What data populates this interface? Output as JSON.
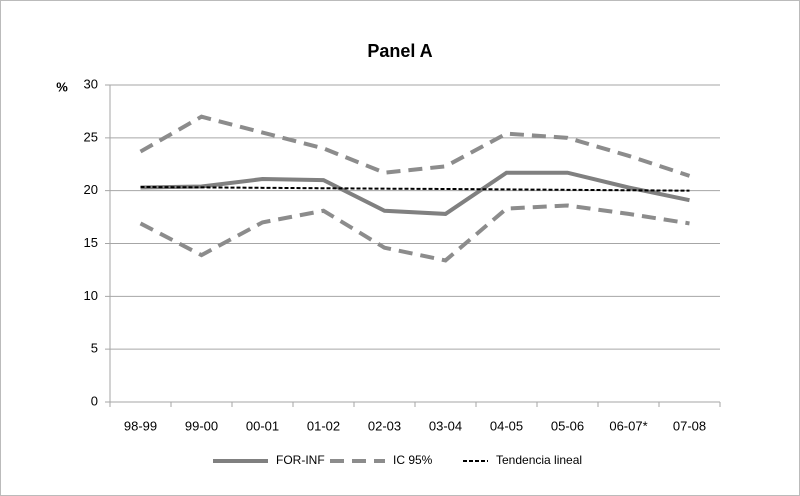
{
  "chart_data": {
    "type": "line",
    "title": "Panel A",
    "y_label": "%",
    "categories": [
      "98-99",
      "99-00",
      "00-01",
      "01-02",
      "02-03",
      "03-04",
      "04-05",
      "05-06",
      "06-07*",
      "07-08"
    ],
    "series": [
      {
        "name": "FOR-INF",
        "color": "#808080",
        "style": "solid",
        "values": [
          20.3,
          20.4,
          21.1,
          21.0,
          18.1,
          17.8,
          21.7,
          21.7,
          20.3,
          19.1
        ]
      },
      {
        "name": "IC 95%",
        "color": "#8c8c8c",
        "style": "dashed",
        "upper": [
          23.7,
          27.0,
          25.5,
          24.0,
          21.7,
          22.3,
          25.4,
          25.0,
          23.3,
          21.4
        ],
        "lower": [
          16.9,
          13.9,
          17.0,
          18.1,
          14.6,
          13.4,
          18.3,
          18.6,
          17.8,
          16.9
        ]
      },
      {
        "name": "Tendencia lineal",
        "color": "#000000",
        "style": "dotted",
        "values": [
          20.35,
          20.31,
          20.27,
          20.23,
          20.19,
          20.16,
          20.12,
          20.08,
          20.04,
          20.0
        ]
      }
    ],
    "ylim": [
      0,
      30
    ],
    "yticks": [
      0,
      5,
      10,
      15,
      20,
      25,
      30
    ],
    "grid": true
  }
}
